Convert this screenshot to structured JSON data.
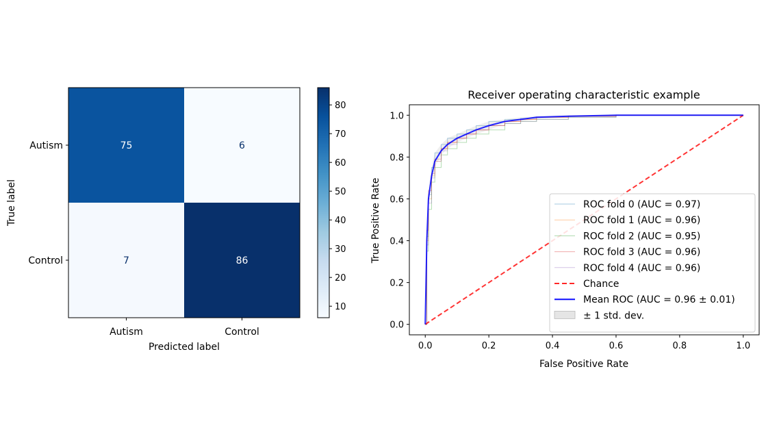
{
  "chart_data": [
    {
      "type": "heatmap",
      "title": "",
      "xlabel": "Predicted label",
      "ylabel": "True label",
      "x_categories": [
        "Autism",
        "Control"
      ],
      "y_categories": [
        "Autism",
        "Control"
      ],
      "matrix": [
        [
          75,
          6
        ],
        [
          7,
          86
        ]
      ],
      "colormap": "Blues",
      "colorbar": {
        "min": 6,
        "max": 86,
        "ticks": [
          10,
          20,
          30,
          40,
          50,
          60,
          70,
          80
        ],
        "tick_labels": [
          "10",
          "20",
          "30",
          "40",
          "50",
          "60",
          "70",
          "80"
        ]
      }
    },
    {
      "type": "line",
      "title": "Receiver operating characteristic example",
      "xlabel": "False Positive Rate",
      "ylabel": "True Positive Rate",
      "xlim": [
        -0.05,
        1.05
      ],
      "ylim": [
        -0.05,
        1.05
      ],
      "x_ticks": [
        0.0,
        0.2,
        0.4,
        0.6,
        0.8,
        1.0
      ],
      "x_tick_labels": [
        "0.0",
        "0.2",
        "0.4",
        "0.6",
        "0.8",
        "1.0"
      ],
      "y_ticks": [
        0.0,
        0.2,
        0.4,
        0.6,
        0.8,
        1.0
      ],
      "y_tick_labels": [
        "0.0",
        "0.2",
        "0.4",
        "0.6",
        "0.8",
        "1.0"
      ],
      "grid": false,
      "legend_position": "lower-right",
      "series": [
        {
          "name": "ROC fold 0 (AUC = 0.97)",
          "color": "#1f77b4",
          "style": "thin",
          "x": [
            0,
            0.005,
            0.01,
            0.02,
            0.03,
            0.05,
            0.07,
            0.1,
            0.13,
            0.16,
            0.2,
            0.25,
            0.3,
            0.35,
            0.45,
            0.6,
            1.0
          ],
          "y": [
            0,
            0.42,
            0.62,
            0.75,
            0.82,
            0.86,
            0.89,
            0.91,
            0.93,
            0.95,
            0.97,
            0.98,
            0.985,
            0.99,
            0.995,
            1.0,
            1.0
          ]
        },
        {
          "name": "ROC fold 1 (AUC = 0.96)",
          "color": "#ff7f0e",
          "style": "thin",
          "x": [
            0,
            0.005,
            0.01,
            0.02,
            0.03,
            0.05,
            0.07,
            0.1,
            0.13,
            0.16,
            0.2,
            0.25,
            0.3,
            0.35,
            0.45,
            0.6,
            1.0
          ],
          "y": [
            0,
            0.4,
            0.6,
            0.71,
            0.78,
            0.84,
            0.87,
            0.89,
            0.91,
            0.93,
            0.95,
            0.97,
            0.98,
            0.99,
            0.995,
            1.0,
            1.0
          ]
        },
        {
          "name": "ROC fold 2 (AUC = 0.95)",
          "color": "#2ca02c",
          "style": "thin",
          "x": [
            0,
            0.005,
            0.01,
            0.02,
            0.03,
            0.05,
            0.07,
            0.1,
            0.13,
            0.16,
            0.2,
            0.25,
            0.3,
            0.35,
            0.45,
            0.6,
            1.0
          ],
          "y": [
            0,
            0.35,
            0.55,
            0.68,
            0.75,
            0.81,
            0.84,
            0.87,
            0.89,
            0.91,
            0.93,
            0.96,
            0.97,
            0.98,
            0.99,
            1.0,
            1.0
          ]
        },
        {
          "name": "ROC fold 3 (AUC = 0.96)",
          "color": "#d62728",
          "style": "thin",
          "x": [
            0,
            0.005,
            0.01,
            0.02,
            0.03,
            0.05,
            0.07,
            0.1,
            0.13,
            0.16,
            0.2,
            0.25,
            0.3,
            0.35,
            0.45,
            0.6,
            1.0
          ],
          "y": [
            0,
            0.45,
            0.64,
            0.72,
            0.79,
            0.84,
            0.87,
            0.89,
            0.91,
            0.93,
            0.95,
            0.97,
            0.98,
            0.99,
            0.995,
            1.0,
            1.0
          ]
        },
        {
          "name": "ROC fold 4 (AUC = 0.96)",
          "color": "#9467bd",
          "style": "thin",
          "x": [
            0,
            0.005,
            0.01,
            0.02,
            0.03,
            0.05,
            0.07,
            0.1,
            0.13,
            0.16,
            0.2,
            0.25,
            0.3,
            0.35,
            0.45,
            0.6,
            1.0
          ],
          "y": [
            0,
            0.38,
            0.58,
            0.7,
            0.78,
            0.83,
            0.86,
            0.89,
            0.91,
            0.93,
            0.95,
            0.96,
            0.97,
            0.98,
            0.99,
            1.0,
            1.0
          ]
        },
        {
          "name": "Chance",
          "color": "#ff0000",
          "style": "dashed",
          "x": [
            0,
            1
          ],
          "y": [
            0,
            1
          ]
        },
        {
          "name": "Mean ROC (AUC = 0.96 ± 0.01)",
          "color": "#0000ff",
          "style": "bold",
          "x": [
            0,
            0.005,
            0.01,
            0.02,
            0.03,
            0.05,
            0.07,
            0.1,
            0.13,
            0.16,
            0.2,
            0.25,
            0.3,
            0.35,
            0.45,
            0.6,
            1.0
          ],
          "y": [
            0,
            0.4,
            0.6,
            0.71,
            0.78,
            0.83,
            0.86,
            0.89,
            0.91,
            0.93,
            0.95,
            0.97,
            0.98,
            0.99,
            0.995,
            1.0,
            1.0
          ]
        },
        {
          "name": "± 1 std. dev.",
          "color": "#a9a9a9",
          "style": "band",
          "x": [
            0,
            0.005,
            0.01,
            0.02,
            0.03,
            0.05,
            0.07,
            0.1,
            0.13,
            0.16,
            0.2,
            0.25,
            0.3,
            0.35,
            0.45,
            0.6,
            1.0
          ],
          "y_lower": [
            0,
            0.36,
            0.56,
            0.68,
            0.75,
            0.81,
            0.84,
            0.87,
            0.89,
            0.91,
            0.93,
            0.96,
            0.97,
            0.98,
            0.99,
            1.0,
            1.0
          ],
          "y_upper": [
            0,
            0.45,
            0.64,
            0.75,
            0.82,
            0.86,
            0.89,
            0.91,
            0.93,
            0.95,
            0.97,
            0.98,
            0.99,
            0.995,
            1.0,
            1.0,
            1.0
          ]
        }
      ]
    }
  ]
}
